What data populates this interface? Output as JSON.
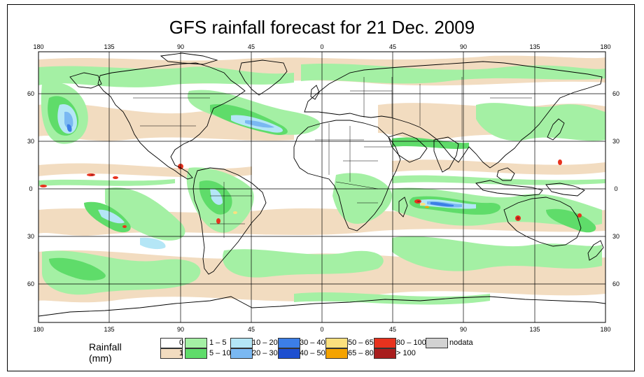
{
  "title": "GFS rainfall forecast for 21 Dec. 2009",
  "top_lon_ticks": [
    "180",
    "135",
    "90",
    "45",
    "0",
    "45",
    "90",
    "135",
    "180"
  ],
  "bottom_lon_ticks": [
    "180",
    "135",
    "90",
    "45",
    "0",
    "45",
    "90",
    "135",
    "180"
  ],
  "lat_ticks": [
    "60",
    "30",
    "0",
    "30",
    "60"
  ],
  "legend": {
    "title": "Rainfall (mm)",
    "items": [
      {
        "label": "0",
        "color": "#ffffff"
      },
      {
        "label": "1",
        "color": "#f2dcc0"
      },
      {
        "label": "1 – 5",
        "color": "#a4f0a4"
      },
      {
        "label": "5 – 10",
        "color": "#5fdc6a"
      },
      {
        "label": "10 – 20",
        "color": "#b4e6f6"
      },
      {
        "label": "20 – 30",
        "color": "#7ab8f2"
      },
      {
        "label": "30 – 40",
        "color": "#3c7ee6"
      },
      {
        "label": "40 – 50",
        "color": "#1e4fd0"
      },
      {
        "label": "50 – 65",
        "color": "#fbe07e"
      },
      {
        "label": "65 – 80",
        "color": "#f4a300"
      },
      {
        "label": "80 – 100",
        "color": "#e8321e"
      },
      {
        "label": "> 100",
        "color": "#a81e1e"
      },
      {
        "label": "nodata",
        "color": "#d2d2d2"
      }
    ]
  }
}
